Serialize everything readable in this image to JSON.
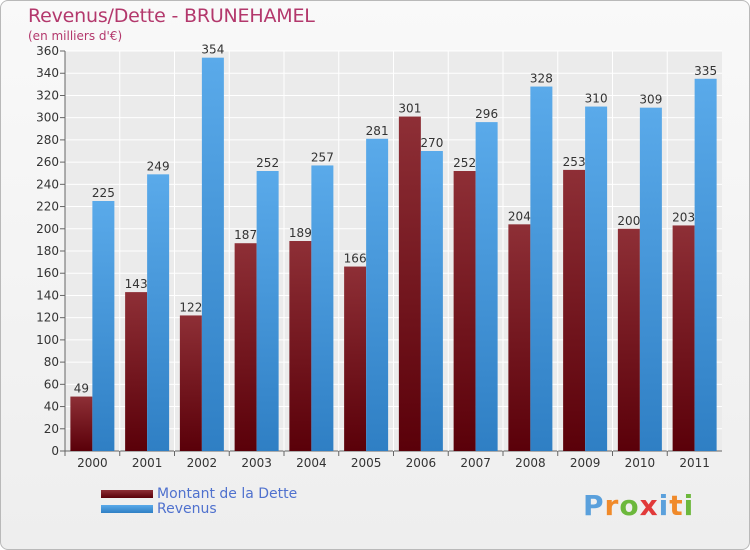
{
  "title": "Revenus/Dette - BRUNEHAMEL",
  "subtitle": "(en milliers d'€)",
  "legend": [
    {
      "label": "Montant de la Dette",
      "color": "#6e0a16"
    },
    {
      "label": "Revenus",
      "color": "#4a9de0"
    }
  ],
  "logo": {
    "letters": [
      "P",
      "r",
      "o",
      "x",
      "i",
      "t",
      "i"
    ],
    "colors": [
      "#5aa0dc",
      "#f08a2a",
      "#6cb83c",
      "#e13a3a",
      "#5aa0dc",
      "#f08a2a",
      "#6cb83c"
    ]
  },
  "chart_data": {
    "type": "bar",
    "categories": [
      "2000",
      "2001",
      "2002",
      "2003",
      "2004",
      "2005",
      "2006",
      "2007",
      "2008",
      "2009",
      "2010",
      "2011"
    ],
    "series": [
      {
        "name": "Montant de la Dette",
        "color": "#7b1c24",
        "values": [
          49,
          143,
          122,
          187,
          189,
          166,
          301,
          252,
          204,
          253,
          200,
          203
        ]
      },
      {
        "name": "Revenus",
        "color": "#4fa3e6",
        "values": [
          225,
          249,
          354,
          252,
          257,
          281,
          270,
          296,
          328,
          310,
          309,
          335
        ]
      }
    ],
    "ylim": [
      0,
      360
    ],
    "ytick_step": 20,
    "grid": true,
    "legend_position": "bottom-left"
  }
}
